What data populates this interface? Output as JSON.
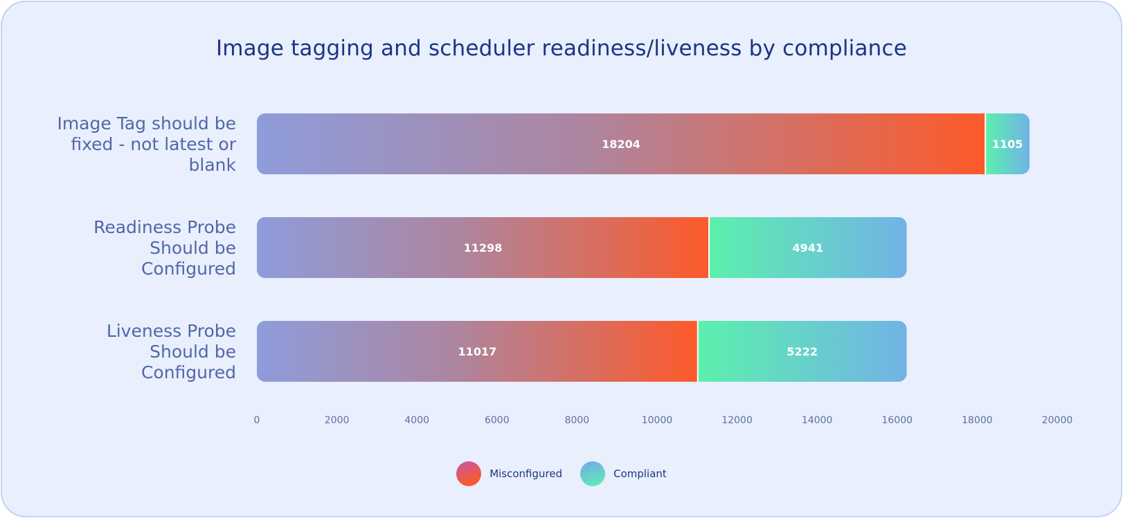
{
  "chart_data": {
    "type": "bar",
    "orientation": "horizontal",
    "stacked": true,
    "title": "Image tagging and scheduler readiness/liveness by compliance",
    "categories": [
      [
        "Image Tag should be",
        "fixed - not latest or",
        "blank"
      ],
      [
        "Readiness Probe",
        "Should be",
        "Configured"
      ],
      [
        "Liveness Probe",
        "Should be",
        "Configured"
      ]
    ],
    "series": [
      {
        "name": "Misconfigured",
        "values": [
          18204,
          11298,
          11017
        ],
        "colors": [
          "#8e9cdb",
          "#fd5a2a"
        ]
      },
      {
        "name": "Compliant",
        "values": [
          1105,
          4941,
          5222
        ],
        "colors": [
          "#5cf0ad",
          "#71b3e6"
        ]
      }
    ],
    "xlim": [
      0,
      20000
    ],
    "xticks": [
      0,
      2000,
      4000,
      6000,
      8000,
      10000,
      12000,
      14000,
      16000,
      18000,
      20000
    ],
    "grid": false,
    "legend_position": "bottom-center"
  },
  "legend": {
    "misconfigured": "Misconfigured",
    "compliant": "Compliant"
  }
}
